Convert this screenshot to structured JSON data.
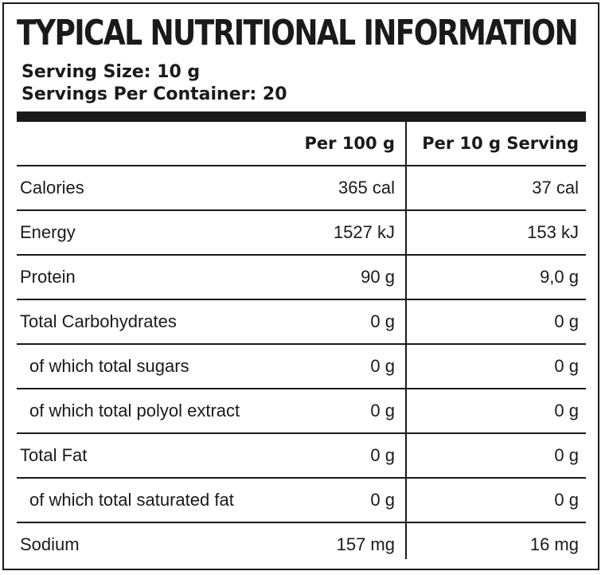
{
  "title": "TYPICAL NUTRITIONAL INFORMATION",
  "serving_size": "Serving Size: 10 g",
  "servings_per_container": "Servings Per Container: 20",
  "columns": {
    "per_100g": "Per 100 g",
    "per_serving": "Per 10 g Serving"
  },
  "rows": [
    {
      "name": "Calories",
      "per_100g": "365 cal",
      "per_serving": "37 cal"
    },
    {
      "name": "Energy",
      "per_100g": "1527 kJ",
      "per_serving": "153 kJ"
    },
    {
      "name": "Protein",
      "per_100g": "90 g",
      "per_serving": "9,0 g"
    },
    {
      "name": "Total Carbohydrates",
      "per_100g": "0 g",
      "per_serving": "0 g"
    },
    {
      "name": "of which total sugars",
      "per_100g": "0 g",
      "per_serving": "0 g"
    },
    {
      "name": "of which total polyol extract",
      "per_100g": "0 g",
      "per_serving": "0 g"
    },
    {
      "name": "Total Fat",
      "per_100g": "0 g",
      "per_serving": "0 g"
    },
    {
      "name": "of which total saturated fat",
      "per_100g": "0 g",
      "per_serving": "0 g"
    },
    {
      "name": "Sodium",
      "per_100g": "157 mg",
      "per_serving": "16 mg"
    }
  ]
}
